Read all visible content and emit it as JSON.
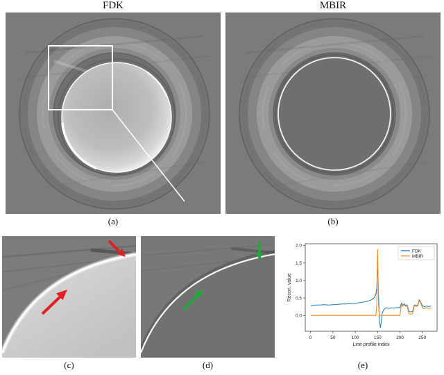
{
  "figure": {
    "panels": {
      "a": {
        "title": "FDK",
        "label": "(a)"
      },
      "b": {
        "title": "MBIR",
        "label": "(b)"
      },
      "c": {
        "label": "(c)"
      },
      "d": {
        "label": "(d)"
      },
      "e": {
        "label": "(e)"
      }
    },
    "annotations": {
      "roi_box_color": "#ffffff",
      "pointer_line_color": "#ffffff",
      "fdk_arrow_color": "#e02020",
      "mbir_arrow_color": "#1fa83b"
    }
  },
  "chart_data": {
    "type": "line",
    "title": "",
    "xlabel": "Line profile index",
    "ylabel": "Recon. value",
    "xlim": [
      -12,
      283
    ],
    "ylim": [
      -0.45,
      2.05
    ],
    "xticks": [
      0,
      50,
      100,
      150,
      200,
      250
    ],
    "yticks": [
      0.0,
      0.5,
      1.0,
      1.5,
      2.0
    ],
    "grid": false,
    "legend": [
      "FDK",
      "MBIR"
    ],
    "legend_position": "upper right",
    "colors": {
      "FDK": "#1f77b4",
      "MBIR": "#ff7f0e"
    },
    "series": [
      {
        "name": "FDK",
        "x": [
          0,
          10,
          20,
          30,
          40,
          50,
          60,
          70,
          80,
          90,
          100,
          110,
          120,
          125,
          130,
          135,
          140,
          143,
          146,
          148,
          150,
          152,
          154,
          156,
          158,
          160,
          163,
          166,
          170,
          175,
          180,
          185,
          190,
          195,
          200,
          203,
          206,
          210,
          213,
          216,
          220,
          224,
          228,
          232,
          236,
          240,
          243,
          246,
          250,
          255,
          260,
          265,
          270
        ],
        "y": [
          0.28,
          0.3,
          0.3,
          0.31,
          0.3,
          0.31,
          0.32,
          0.33,
          0.33,
          0.34,
          0.35,
          0.37,
          0.39,
          0.4,
          0.42,
          0.44,
          0.48,
          0.52,
          0.6,
          0.8,
          1.55,
          0.6,
          -0.1,
          -0.35,
          -0.2,
          0.05,
          0.15,
          0.2,
          0.22,
          0.2,
          0.22,
          0.21,
          0.22,
          0.23,
          0.22,
          0.35,
          0.3,
          0.33,
          0.28,
          0.3,
          0.12,
          0.1,
          0.12,
          0.3,
          0.28,
          0.3,
          0.45,
          0.4,
          0.28,
          0.25,
          0.27,
          0.26,
          0.27
        ]
      },
      {
        "name": "MBIR",
        "x": [
          0,
          50,
          100,
          140,
          146,
          148,
          150,
          152,
          154,
          160,
          170,
          180,
          190,
          200,
          203,
          206,
          210,
          213,
          216,
          220,
          224,
          228,
          232,
          236,
          240,
          243,
          246,
          250,
          255,
          260,
          265,
          270
        ],
        "y": [
          0.0,
          0.0,
          0.0,
          0.0,
          0.0,
          0.3,
          1.9,
          0.3,
          0.0,
          0.0,
          0.0,
          0.0,
          0.0,
          0.0,
          0.3,
          0.27,
          0.3,
          0.26,
          0.28,
          0.05,
          0.04,
          0.05,
          0.28,
          0.26,
          0.28,
          0.42,
          0.38,
          0.22,
          0.2,
          0.22,
          0.2,
          0.21
        ]
      }
    ]
  }
}
